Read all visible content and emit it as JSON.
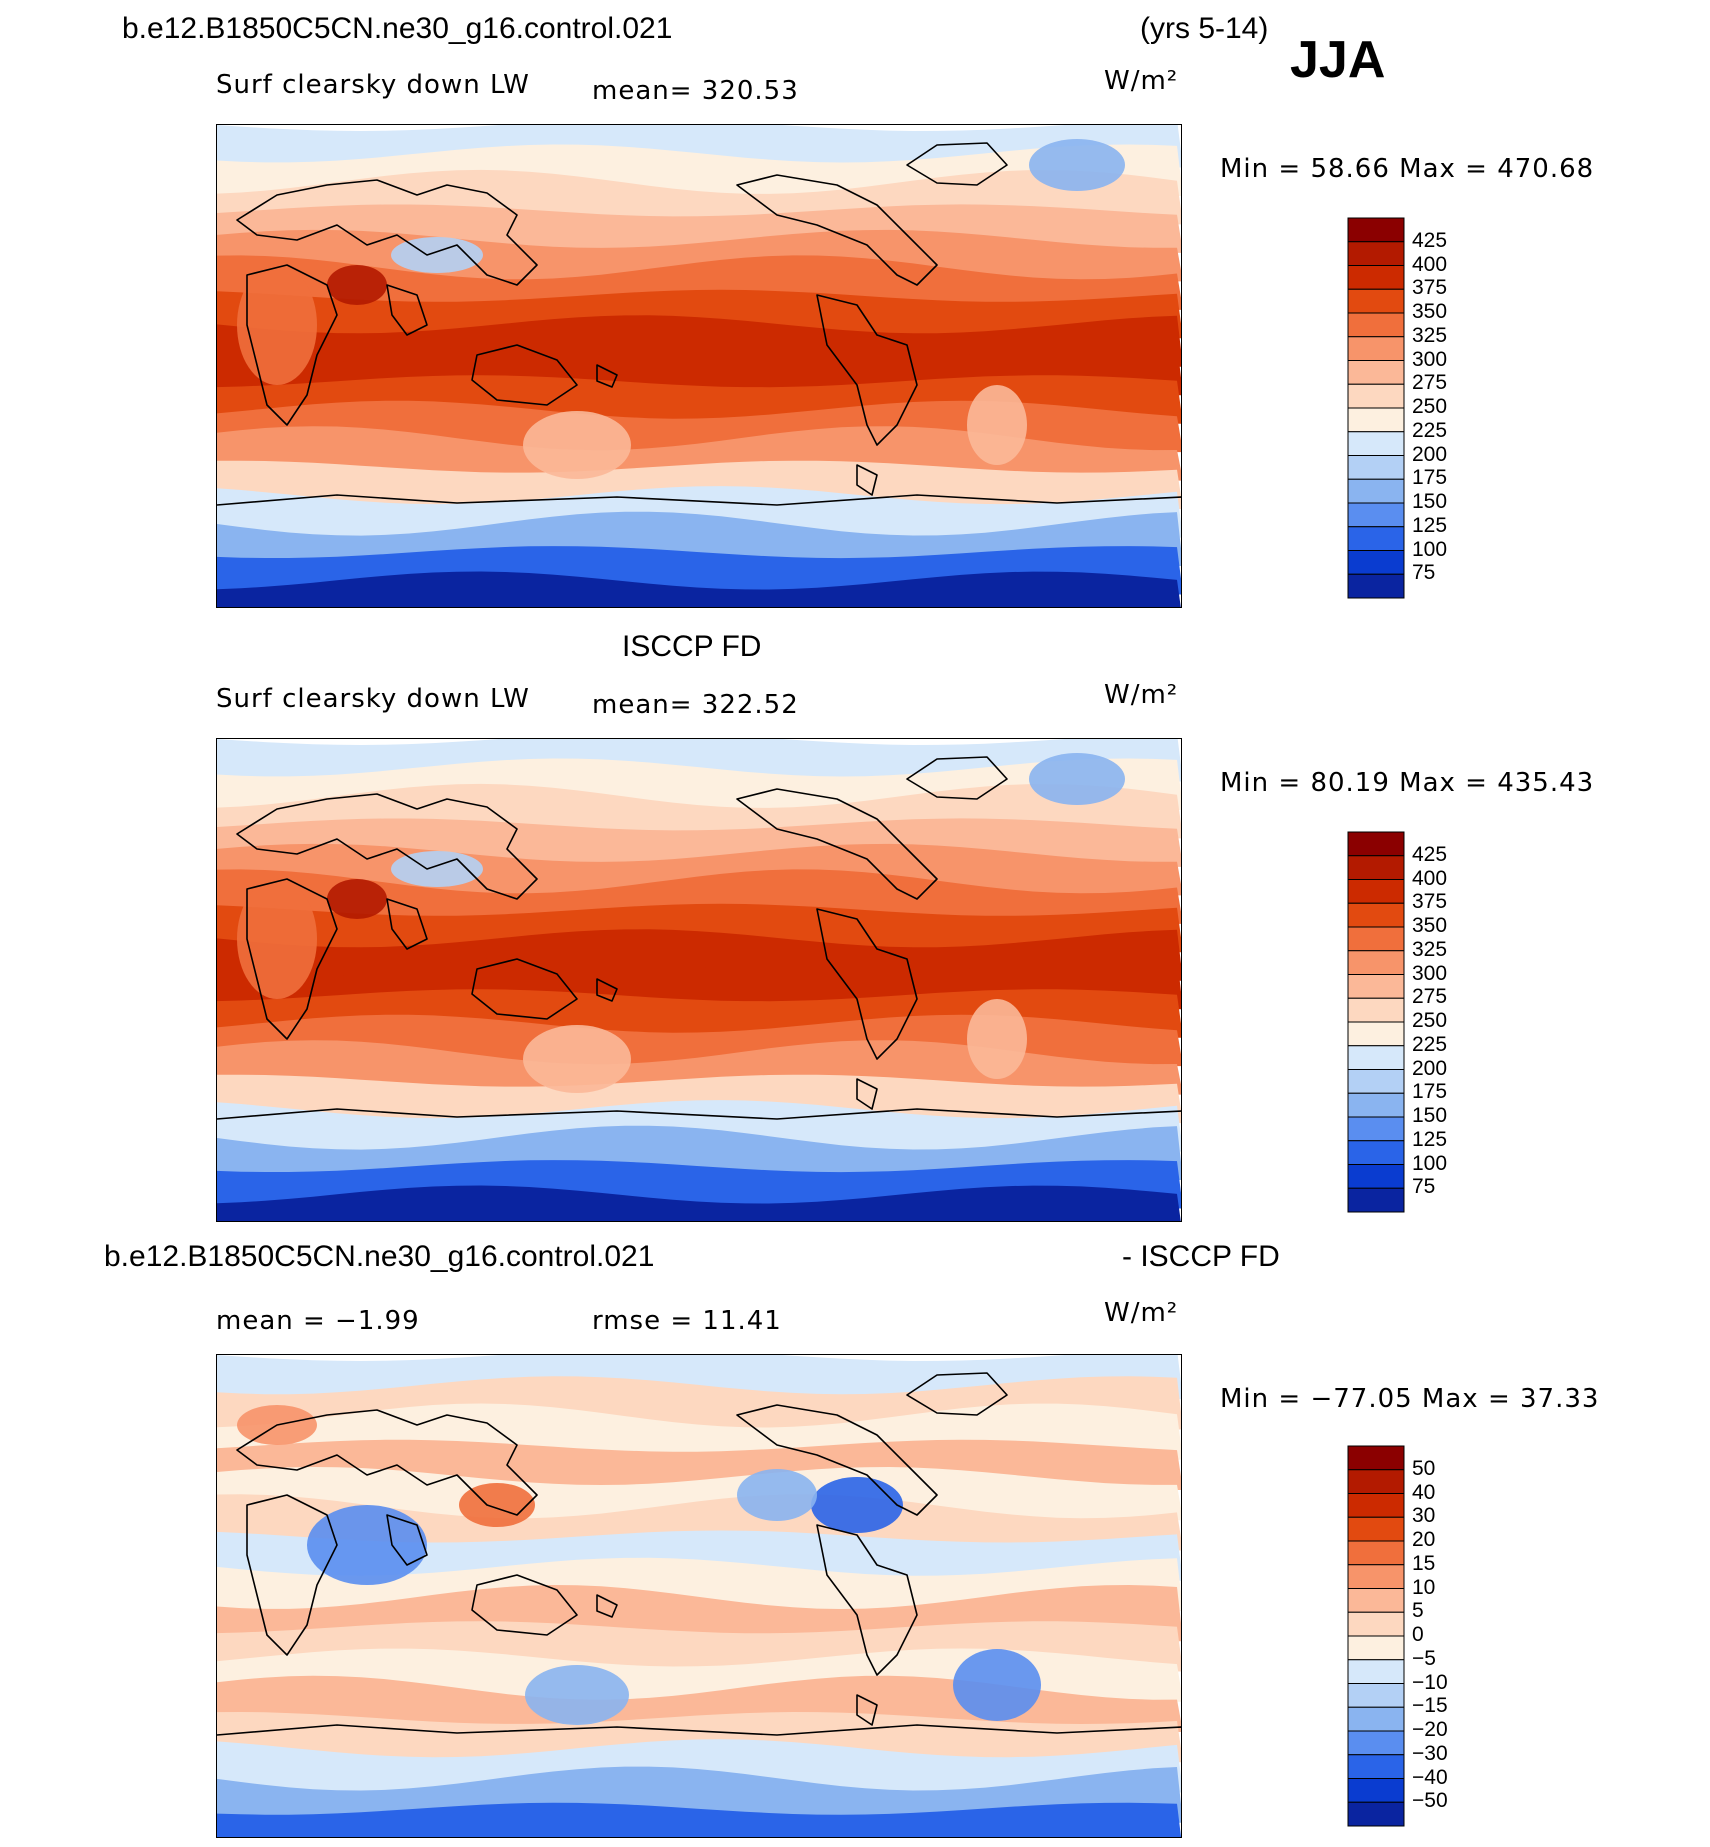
{
  "header": {
    "case_title": "b.e12.B1850C5CN.ne30_g16.control.021",
    "years": "(yrs 5-14)",
    "season": "JJA"
  },
  "panels": [
    {
      "id": "model",
      "subtitle": "Surf clearsky down LW",
      "mean_label": "mean=  320.53",
      "units": "W/m²",
      "minmax": "Min =   58.66  Max  =  470.68"
    },
    {
      "id": "obs",
      "title": "ISCCP FD",
      "subtitle": "Surf clearsky down LW",
      "mean_label": "mean=  322.52",
      "units": "W/m²",
      "minmax": "Min =   80.19  Max  =  435.43"
    },
    {
      "id": "diff",
      "title_left": "b.e12.B1850C5CN.ne30_g16.control.021",
      "title_right": "- ISCCP FD",
      "mean_label": "mean =   −1.99",
      "rmse_label": "rmse =    11.41",
      "units": "W/m²",
      "minmax": "Min = −77.05  Max =   37.33"
    }
  ],
  "chart_data": [
    {
      "type": "heatmap",
      "title": "Surf clearsky down LW",
      "dataset": "b.e12.B1850C5CN.ne30_g16.control.021",
      "mean": 320.53,
      "min": 58.66,
      "max": 470.68,
      "units": "W/m2",
      "levels": [
        "425",
        "400",
        "375",
        "350",
        "325",
        "300",
        "275",
        "250",
        "225",
        "200",
        "175",
        "150",
        "125",
        "100",
        "75"
      ],
      "colors": [
        "#8b0000",
        "#b31a00",
        "#cc2a00",
        "#e24a10",
        "#f06f3c",
        "#f7946a",
        "#fbb898",
        "#fdd8c0",
        "#fdf0e0",
        "#d6e8fa",
        "#b3d0f5",
        "#8ab4f0",
        "#5a8ef0",
        "#2a64e8",
        "#0a3cd0",
        "#0a24a0"
      ]
    },
    {
      "type": "heatmap",
      "title": "Surf clearsky down LW",
      "dataset": "ISCCP FD",
      "mean": 322.52,
      "min": 80.19,
      "max": 435.43,
      "units": "W/m2",
      "levels": [
        "425",
        "400",
        "375",
        "350",
        "325",
        "300",
        "275",
        "250",
        "225",
        "200",
        "175",
        "150",
        "125",
        "100",
        "75"
      ],
      "colors": [
        "#8b0000",
        "#b31a00",
        "#cc2a00",
        "#e24a10",
        "#f06f3c",
        "#f7946a",
        "#fbb898",
        "#fdd8c0",
        "#fdf0e0",
        "#d6e8fa",
        "#b3d0f5",
        "#8ab4f0",
        "#5a8ef0",
        "#2a64e8",
        "#0a3cd0",
        "#0a24a0"
      ]
    },
    {
      "type": "heatmap",
      "title": "b.e12.B1850C5CN.ne30_g16.control.021 - ISCCP FD",
      "mean": -1.99,
      "rmse": 11.41,
      "min": -77.05,
      "max": 37.33,
      "units": "W/m2",
      "levels": [
        "50",
        "40",
        "30",
        "20",
        "15",
        "10",
        "5",
        "0",
        "−5",
        "−10",
        "−15",
        "−20",
        "−30",
        "−40",
        "−50"
      ],
      "colors": [
        "#8b0000",
        "#b31a00",
        "#cc2a00",
        "#e24a10",
        "#f06f3c",
        "#f7946a",
        "#fbb898",
        "#fdd8c0",
        "#fdf0e0",
        "#d6e8fa",
        "#b3d0f5",
        "#8ab4f0",
        "#5a8ef0",
        "#2a64e8",
        "#0a3cd0",
        "#0a24a0"
      ]
    }
  ]
}
